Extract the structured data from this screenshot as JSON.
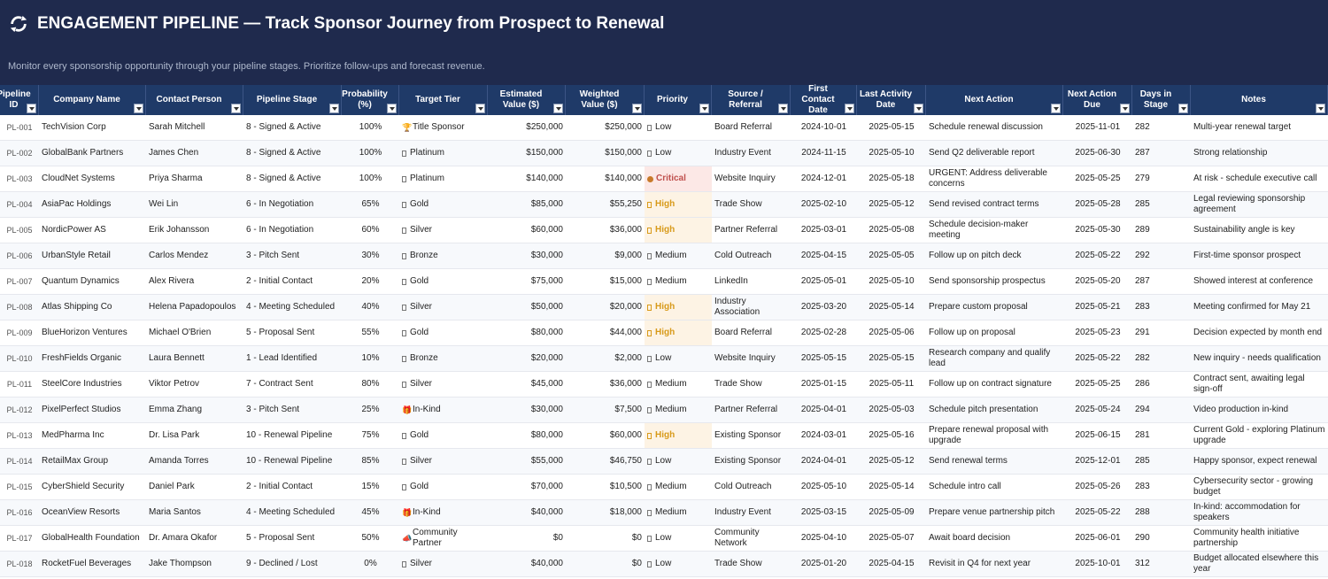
{
  "header": {
    "title": "ENGAGEMENT PIPELINE — Track Sponsor Journey from Prospect to Renewal",
    "subtitle": "Monitor every sponsorship opportunity through your pipeline stages. Prioritize follow-ups and forecast revenue.",
    "logo_icon": "refresh-cycle-icon"
  },
  "colors": {
    "banner": "#1f2a4d",
    "header_row": "#1f3a68",
    "high": "#d89a1a",
    "critical": "#c0504d"
  },
  "columns": [
    "Pipeline ID",
    "Company Name",
    "Contact Person",
    "Pipeline Stage",
    "Probability (%)",
    "Target Tier",
    "Estimated Value ($)",
    "Weighted Value ($)",
    "Priority",
    "Source / Referral",
    "First Contact Date",
    "Last Activity Date",
    "Next Action",
    "Next Action Due",
    "Days in Stage",
    "Notes"
  ],
  "rows": [
    [
      "PL-001",
      "TechVision Corp",
      "Sarah Mitchell",
      "8 - Signed & Active",
      "100%",
      "Title Sponsor",
      "$250,000",
      "$250,000",
      "Low",
      "Board Referral",
      "2024-10-01",
      "2025-05-15",
      "Schedule renewal discussion",
      "2025-11-01",
      "282",
      "Multi-year renewal target"
    ],
    [
      "PL-002",
      "GlobalBank Partners",
      "James Chen",
      "8 - Signed & Active",
      "100%",
      "Platinum",
      "$150,000",
      "$150,000",
      "Low",
      "Industry Event",
      "2024-11-15",
      "2025-05-10",
      "Send Q2 deliverable report",
      "2025-06-30",
      "287",
      "Strong relationship"
    ],
    [
      "PL-003",
      "CloudNet Systems",
      "Priya Sharma",
      "8 - Signed & Active",
      "100%",
      "Platinum",
      "$140,000",
      "$140,000",
      "Critical",
      "Website Inquiry",
      "2024-12-01",
      "2025-05-18",
      "URGENT: Address deliverable concerns",
      "2025-05-25",
      "279",
      "At risk - schedule executive call"
    ],
    [
      "PL-004",
      "AsiaPac Holdings",
      "Wei Lin",
      "6 - In Negotiation",
      "65%",
      "Gold",
      "$85,000",
      "$55,250",
      "High",
      "Trade Show",
      "2025-02-10",
      "2025-05-12",
      "Send revised contract terms",
      "2025-05-28",
      "285",
      "Legal reviewing sponsorship agreement"
    ],
    [
      "PL-005",
      "NordicPower AS",
      "Erik Johansson",
      "6 - In Negotiation",
      "60%",
      "Silver",
      "$60,000",
      "$36,000",
      "High",
      "Partner Referral",
      "2025-03-01",
      "2025-05-08",
      "Schedule decision-maker meeting",
      "2025-05-30",
      "289",
      "Sustainability angle is key"
    ],
    [
      "PL-006",
      "UrbanStyle Retail",
      "Carlos Mendez",
      "3 - Pitch Sent",
      "30%",
      "Bronze",
      "$30,000",
      "$9,000",
      "Medium",
      "Cold Outreach",
      "2025-04-15",
      "2025-05-05",
      "Follow up on pitch deck",
      "2025-05-22",
      "292",
      "First-time sponsor prospect"
    ],
    [
      "PL-007",
      "Quantum Dynamics",
      "Alex Rivera",
      "2 - Initial Contact",
      "20%",
      "Gold",
      "$75,000",
      "$15,000",
      "Medium",
      "LinkedIn",
      "2025-05-01",
      "2025-05-10",
      "Send sponsorship prospectus",
      "2025-05-20",
      "287",
      "Showed interest at conference"
    ],
    [
      "PL-008",
      "Atlas Shipping Co",
      "Helena Papadopoulos",
      "4 - Meeting Scheduled",
      "40%",
      "Silver",
      "$50,000",
      "$20,000",
      "High",
      "Industry Association",
      "2025-03-20",
      "2025-05-14",
      "Prepare custom proposal",
      "2025-05-21",
      "283",
      "Meeting confirmed for May 21"
    ],
    [
      "PL-009",
      "BlueHorizon Ventures",
      "Michael O'Brien",
      "5 - Proposal Sent",
      "55%",
      "Gold",
      "$80,000",
      "$44,000",
      "High",
      "Board Referral",
      "2025-02-28",
      "2025-05-06",
      "Follow up on proposal",
      "2025-05-23",
      "291",
      "Decision expected by month end"
    ],
    [
      "PL-010",
      "FreshFields Organic",
      "Laura Bennett",
      "1 - Lead Identified",
      "10%",
      "Bronze",
      "$20,000",
      "$2,000",
      "Low",
      "Website Inquiry",
      "2025-05-15",
      "2025-05-15",
      "Research company and qualify lead",
      "2025-05-22",
      "282",
      "New inquiry - needs qualification"
    ],
    [
      "PL-011",
      "SteelCore Industries",
      "Viktor Petrov",
      "7 - Contract Sent",
      "80%",
      "Silver",
      "$45,000",
      "$36,000",
      "Medium",
      "Trade Show",
      "2025-01-15",
      "2025-05-11",
      "Follow up on contract signature",
      "2025-05-25",
      "286",
      "Contract sent, awaiting legal sign-off"
    ],
    [
      "PL-012",
      "PixelPerfect Studios",
      "Emma Zhang",
      "3 - Pitch Sent",
      "25%",
      "In-Kind",
      "$30,000",
      "$7,500",
      "Medium",
      "Partner Referral",
      "2025-04-01",
      "2025-05-03",
      "Schedule pitch presentation",
      "2025-05-24",
      "294",
      "Video production in-kind"
    ],
    [
      "PL-013",
      "MedPharma Inc",
      "Dr. Lisa Park",
      "10 - Renewal Pipeline",
      "75%",
      "Gold",
      "$80,000",
      "$60,000",
      "High",
      "Existing Sponsor",
      "2024-03-01",
      "2025-05-16",
      "Prepare renewal proposal with upgrade",
      "2025-06-15",
      "281",
      "Current Gold - exploring Platinum upgrade"
    ],
    [
      "PL-014",
      "RetailMax Group",
      "Amanda Torres",
      "10 - Renewal Pipeline",
      "85%",
      "Silver",
      "$55,000",
      "$46,750",
      "Low",
      "Existing Sponsor",
      "2024-04-01",
      "2025-05-12",
      "Send renewal terms",
      "2025-12-01",
      "285",
      "Happy sponsor, expect renewal"
    ],
    [
      "PL-015",
      "CyberShield Security",
      "Daniel Park",
      "2 - Initial Contact",
      "15%",
      "Gold",
      "$70,000",
      "$10,500",
      "Medium",
      "Cold Outreach",
      "2025-05-10",
      "2025-05-14",
      "Schedule intro call",
      "2025-05-26",
      "283",
      "Cybersecurity sector - growing budget"
    ],
    [
      "PL-016",
      "OceanView Resorts",
      "Maria Santos",
      "4 - Meeting Scheduled",
      "45%",
      "In-Kind",
      "$40,000",
      "$18,000",
      "Medium",
      "Industry Event",
      "2025-03-15",
      "2025-05-09",
      "Prepare venue partnership pitch",
      "2025-05-22",
      "288",
      "In-kind: accommodation for speakers"
    ],
    [
      "PL-017",
      "GlobalHealth Foundation",
      "Dr. Amara Okafor",
      "5 - Proposal Sent",
      "50%",
      "Community Partner",
      "$0",
      "$0",
      "Low",
      "Community Network",
      "2025-04-10",
      "2025-05-07",
      "Await board decision",
      "2025-06-01",
      "290",
      "Community health initiative partnership"
    ],
    [
      "PL-018",
      "RocketFuel Beverages",
      "Jake Thompson",
      "9 - Declined / Lost",
      "0%",
      "Silver",
      "$40,000",
      "$0",
      "Low",
      "Trade Show",
      "2025-01-20",
      "2025-04-15",
      "Revisit in Q4 for next year",
      "2025-10-01",
      "312",
      "Budget allocated elsewhere this year"
    ]
  ]
}
